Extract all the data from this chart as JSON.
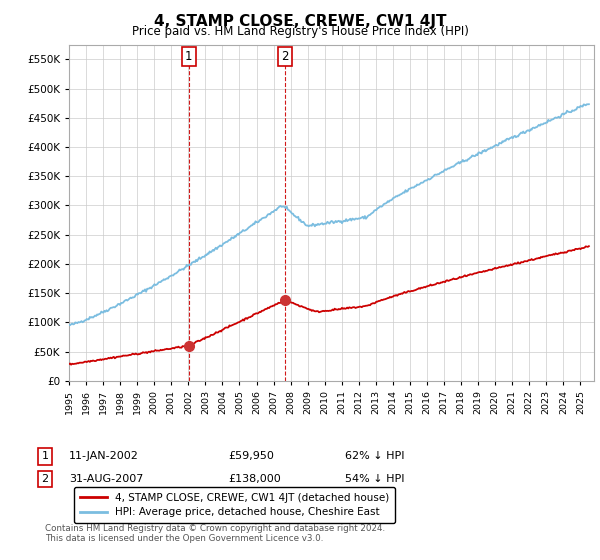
{
  "title": "4, STAMP CLOSE, CREWE, CW1 4JT",
  "subtitle": "Price paid vs. HM Land Registry's House Price Index (HPI)",
  "ylim": [
    0,
    575000
  ],
  "yticks": [
    0,
    50000,
    100000,
    150000,
    200000,
    250000,
    300000,
    350000,
    400000,
    450000,
    500000,
    550000
  ],
  "hpi_color": "#7bbde0",
  "sale_color": "#cc0000",
  "marker_color": "#cc3333",
  "annotation_color": "#cc0000",
  "grid_color": "#cccccc",
  "bg_color": "#ffffff",
  "legend_line1": "4, STAMP CLOSE, CREWE, CW1 4JT (detached house)",
  "legend_line2": "HPI: Average price, detached house, Cheshire East",
  "annotation1_date": "11-JAN-2002",
  "annotation1_price": "£59,950",
  "annotation1_hpi": "62% ↓ HPI",
  "annotation2_date": "31-AUG-2007",
  "annotation2_price": "£138,000",
  "annotation2_hpi": "54% ↓ HPI",
  "footnote": "Contains HM Land Registry data © Crown copyright and database right 2024.\nThis data is licensed under the Open Government Licence v3.0.",
  "sale1_year": 2002.03,
  "sale1_price": 59950,
  "sale2_year": 2007.66,
  "sale2_price": 138000,
  "xlim_start": 1995,
  "xlim_end": 2025.8
}
